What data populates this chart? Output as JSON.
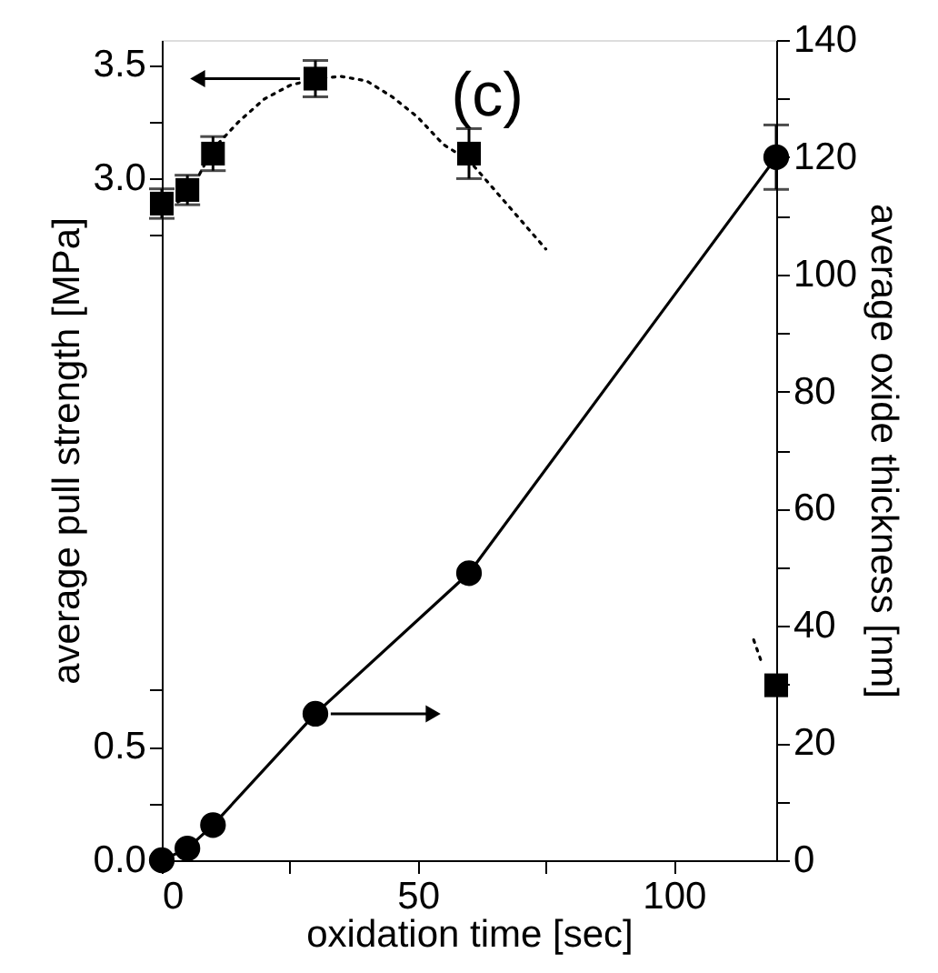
{
  "chart_data": {
    "type": "scatter",
    "xlabel": "oxidation time [sec]",
    "ylabel": "average pull strength [MPa]",
    "y2label": "average oxide thickness [nm]",
    "annotations": [
      "(c)"
    ],
    "xlim": [
      0,
      120
    ],
    "xticks": [
      0,
      {
        "value": 25,
        "label": null
      },
      50,
      {
        "value": 75,
        "label": null
      },
      100
    ],
    "ylim": [
      0,
      3.61
    ],
    "yticks": [
      {
        "value": 0,
        "label": "0.0"
      },
      {
        "value": 0.25,
        "label": null
      },
      {
        "value": 0.5,
        "label": "0.5"
      },
      {
        "value": 0.75,
        "label": null
      },
      {
        "value": 2.75,
        "label": null
      },
      {
        "value": 3,
        "label": "3.0"
      },
      {
        "value": 3.25,
        "label": null
      },
      {
        "value": 3.5,
        "label": "3.5"
      }
    ],
    "y2lim": [
      0,
      140
    ],
    "y2ticks": [
      0,
      {
        "value": 10,
        "label": null
      },
      20,
      {
        "value": 30,
        "label": null
      },
      40,
      {
        "value": 50,
        "label": null
      },
      60,
      {
        "value": 70,
        "label": null
      },
      80,
      {
        "value": 90,
        "label": null
      },
      100,
      {
        "value": 110,
        "label": null
      },
      120,
      {
        "value": 130,
        "label": null
      },
      140
    ],
    "grid": false,
    "series": [
      {
        "marker": "square",
        "color": "#000000",
        "axis": "y",
        "x": [
          0,
          5,
          10,
          30,
          60,
          120
        ],
        "values": [
          2.89,
          2.95,
          3.11,
          3.44,
          3.11,
          0.77
        ],
        "errors": [
          0.065,
          0.065,
          0.075,
          0.08,
          0.11,
          null
        ]
      },
      {
        "type": "line",
        "line_style": "dotted",
        "marker": "none",
        "color": "#000000",
        "axis": "y",
        "x": [
          0,
          5,
          10,
          15,
          20,
          25,
          30,
          35,
          40,
          45,
          50,
          55,
          60,
          65,
          70,
          75,
          95,
          115.6,
          117
        ],
        "values": [
          2.86,
          2.92,
          3.13,
          3.25,
          3.35,
          3.41,
          3.44,
          3.45,
          3.43,
          3.36,
          3.27,
          3.15,
          3.08,
          2.95,
          2.82,
          2.69,
          null,
          0.97,
          0.88
        ]
      },
      {
        "type": "line",
        "line_style": "solid",
        "marker": "circle",
        "color": "#000000",
        "axis": "y2",
        "x": [
          0,
          5,
          10,
          30,
          60,
          120
        ],
        "values": [
          0,
          2,
          6,
          25,
          49,
          120
        ],
        "errors": [
          null,
          null,
          null,
          null,
          null,
          5.5
        ]
      }
    ]
  }
}
